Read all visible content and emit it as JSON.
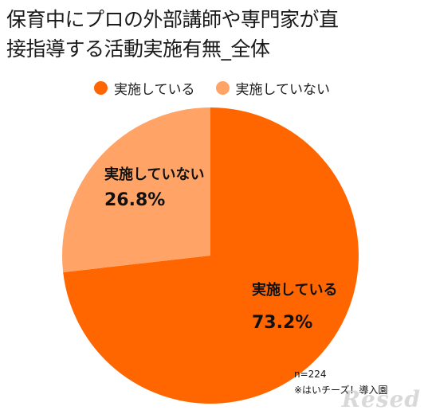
{
  "chart_data": {
    "type": "pie",
    "title": "保育中にプロの外部講師や専門家が直接指導する活動実施有無_全体",
    "categories": [
      "実施している",
      "実施していない"
    ],
    "values": [
      73.2,
      26.8
    ],
    "value_labels": [
      "73.2%",
      "26.8%"
    ],
    "colors": [
      "#FF6600",
      "#FFA366"
    ],
    "legend_position": "top-center",
    "start_angle": "12 o'clock, clockwise"
  },
  "title_lines": [
    "保育中にプロの外部講師や専門家が直",
    "接指導する活動実施有無_全体"
  ],
  "notes": {
    "n": "n=224",
    "footnote": "※はいチーズ！導入園"
  },
  "watermark": "Resed"
}
